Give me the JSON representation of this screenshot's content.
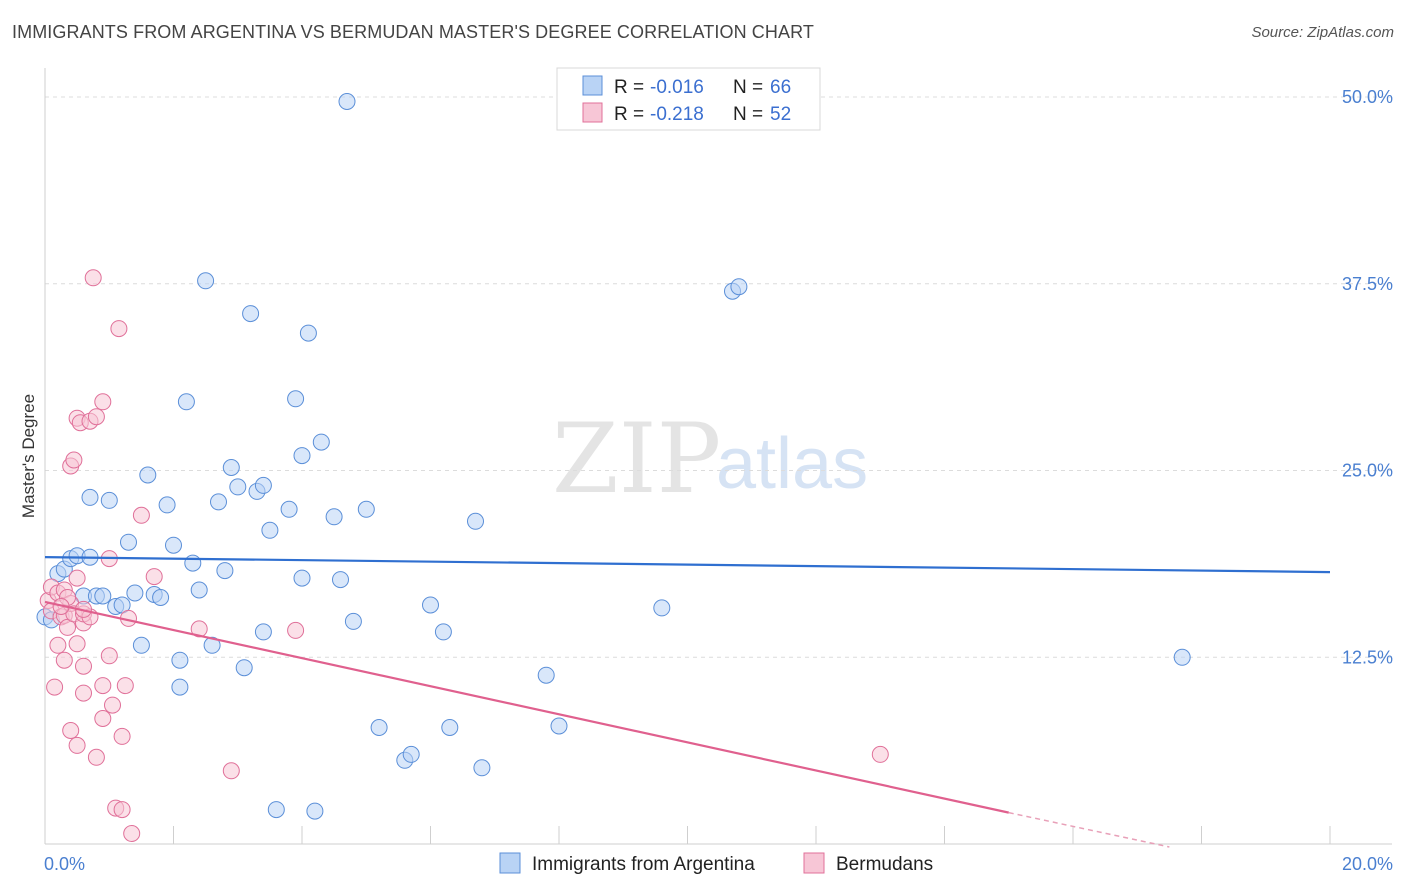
{
  "header": {
    "title": "IMMIGRANTS FROM ARGENTINA VS BERMUDAN MASTER'S DEGREE CORRELATION CHART",
    "source": "Source: ZipAtlas.com"
  },
  "watermark": {
    "zip": "ZIP",
    "atlas": "atlas"
  },
  "legend": {
    "rows": [
      {
        "r_label": "R =",
        "r_value": "-0.016",
        "n_label": "N =",
        "n_value": "66",
        "color": "#5b8fd8",
        "fill": "#b9d3f5"
      },
      {
        "r_label": "R =",
        "r_value": "-0.218",
        "n_label": "N =",
        "n_value": "52",
        "color": "#e07099",
        "fill": "#f7c6d6"
      }
    ]
  },
  "bottom_legend": {
    "items": [
      {
        "label": "Immigrants from Argentina",
        "color": "#5b8fd8",
        "fill": "#b9d3f5"
      },
      {
        "label": "Bermudans",
        "color": "#e07099",
        "fill": "#f7c6d6"
      }
    ]
  },
  "chart_data": {
    "type": "scatter",
    "title": "IMMIGRANTS FROM ARGENTINA VS BERMUDAN MASTER'S DEGREE CORRELATION CHART",
    "xlabel": "",
    "ylabel": "Master's Degree",
    "xlim": [
      0,
      20
    ],
    "ylim": [
      0,
      52
    ],
    "x_ticks": [
      "0.0%",
      "20.0%"
    ],
    "y_ticks": [
      {
        "value": 12.5,
        "label": "12.5%"
      },
      {
        "value": 25.0,
        "label": "25.0%"
      },
      {
        "value": 37.5,
        "label": "37.5%"
      },
      {
        "value": 50.0,
        "label": "50.0%"
      }
    ],
    "grid": true,
    "legend_position": "top-center",
    "series": [
      {
        "name": "Immigrants from Argentina",
        "color": "#5b8fd8",
        "fill": "#b9d3f5",
        "trend": {
          "x": [
            0,
            20
          ],
          "y": [
            19.2,
            18.2
          ]
        },
        "points": [
          [
            0.2,
            18.1
          ],
          [
            0.3,
            18.4
          ],
          [
            0.4,
            19.1
          ],
          [
            0.5,
            19.3
          ],
          [
            0.7,
            19.2
          ],
          [
            0.6,
            16.6
          ],
          [
            0.7,
            23.2
          ],
          [
            0.8,
            16.6
          ],
          [
            0.9,
            16.6
          ],
          [
            1.0,
            23.0
          ],
          [
            1.1,
            15.9
          ],
          [
            1.2,
            16.0
          ],
          [
            1.3,
            20.2
          ],
          [
            1.4,
            16.8
          ],
          [
            1.5,
            13.3
          ],
          [
            1.6,
            24.7
          ],
          [
            1.7,
            16.7
          ],
          [
            1.8,
            16.5
          ],
          [
            1.9,
            22.7
          ],
          [
            2.0,
            20.0
          ],
          [
            2.1,
            12.3
          ],
          [
            2.1,
            10.5
          ],
          [
            2.2,
            29.6
          ],
          [
            2.3,
            18.8
          ],
          [
            2.4,
            17.0
          ],
          [
            2.5,
            37.7
          ],
          [
            2.6,
            13.3
          ],
          [
            2.7,
            22.9
          ],
          [
            2.8,
            18.3
          ],
          [
            2.9,
            25.2
          ],
          [
            3.0,
            23.9
          ],
          [
            3.1,
            11.8
          ],
          [
            3.2,
            35.5
          ],
          [
            3.3,
            23.6
          ],
          [
            3.4,
            24.0
          ],
          [
            3.4,
            14.2
          ],
          [
            3.5,
            21.0
          ],
          [
            3.6,
            2.3
          ],
          [
            3.8,
            22.4
          ],
          [
            3.9,
            29.8
          ],
          [
            4.0,
            17.8
          ],
          [
            4.0,
            26.0
          ],
          [
            4.1,
            34.2
          ],
          [
            4.2,
            2.2
          ],
          [
            4.3,
            26.9
          ],
          [
            4.5,
            21.9
          ],
          [
            4.6,
            17.7
          ],
          [
            4.7,
            49.7
          ],
          [
            4.8,
            14.9
          ],
          [
            5.0,
            22.4
          ],
          [
            5.2,
            7.8
          ],
          [
            5.6,
            5.6
          ],
          [
            5.7,
            6.0
          ],
          [
            6.0,
            16.0
          ],
          [
            6.2,
            14.2
          ],
          [
            6.3,
            7.8
          ],
          [
            6.7,
            21.6
          ],
          [
            6.8,
            5.1
          ],
          [
            7.8,
            11.3
          ],
          [
            8.0,
            7.9
          ],
          [
            9.6,
            15.8
          ],
          [
            10.7,
            37.0
          ],
          [
            10.8,
            37.3
          ],
          [
            17.7,
            12.5
          ],
          [
            0.0,
            15.2
          ],
          [
            0.1,
            15.0
          ]
        ]
      },
      {
        "name": "Bermudans",
        "color": "#e07099",
        "fill": "#f7c6d6",
        "trend": {
          "x": [
            0,
            15
          ],
          "y": [
            16.2,
            2.1
          ]
        },
        "trend_dashed": {
          "x": [
            15,
            17.5
          ],
          "y": [
            2.1,
            -0.2
          ]
        },
        "points": [
          [
            0.05,
            16.3
          ],
          [
            0.1,
            17.2
          ],
          [
            0.1,
            15.6
          ],
          [
            0.15,
            10.5
          ],
          [
            0.2,
            16.8
          ],
          [
            0.2,
            13.3
          ],
          [
            0.25,
            15.2
          ],
          [
            0.3,
            12.3
          ],
          [
            0.3,
            17.0
          ],
          [
            0.3,
            15.3
          ],
          [
            0.35,
            14.5
          ],
          [
            0.4,
            16.1
          ],
          [
            0.4,
            25.3
          ],
          [
            0.4,
            7.6
          ],
          [
            0.45,
            25.7
          ],
          [
            0.45,
            15.4
          ],
          [
            0.5,
            13.4
          ],
          [
            0.5,
            17.8
          ],
          [
            0.5,
            28.5
          ],
          [
            0.55,
            28.2
          ],
          [
            0.5,
            6.6
          ],
          [
            0.6,
            14.8
          ],
          [
            0.6,
            11.9
          ],
          [
            0.6,
            15.4
          ],
          [
            0.6,
            10.1
          ],
          [
            0.7,
            28.3
          ],
          [
            0.7,
            15.2
          ],
          [
            0.75,
            37.9
          ],
          [
            0.8,
            5.8
          ],
          [
            0.8,
            28.6
          ],
          [
            0.9,
            8.4
          ],
          [
            0.9,
            10.6
          ],
          [
            0.9,
            29.6
          ],
          [
            1.0,
            12.6
          ],
          [
            1.0,
            19.1
          ],
          [
            1.05,
            9.3
          ],
          [
            1.1,
            2.4
          ],
          [
            1.15,
            34.5
          ],
          [
            1.2,
            2.3
          ],
          [
            1.2,
            7.2
          ],
          [
            1.25,
            10.6
          ],
          [
            1.3,
            15.1
          ],
          [
            1.35,
            0.7
          ],
          [
            1.5,
            22.0
          ],
          [
            1.7,
            17.9
          ],
          [
            2.4,
            14.4
          ],
          [
            2.9,
            4.9
          ],
          [
            3.9,
            14.3
          ],
          [
            13.0,
            6.0
          ],
          [
            0.6,
            15.7
          ],
          [
            0.35,
            16.5
          ],
          [
            0.25,
            15.9
          ]
        ]
      }
    ]
  }
}
